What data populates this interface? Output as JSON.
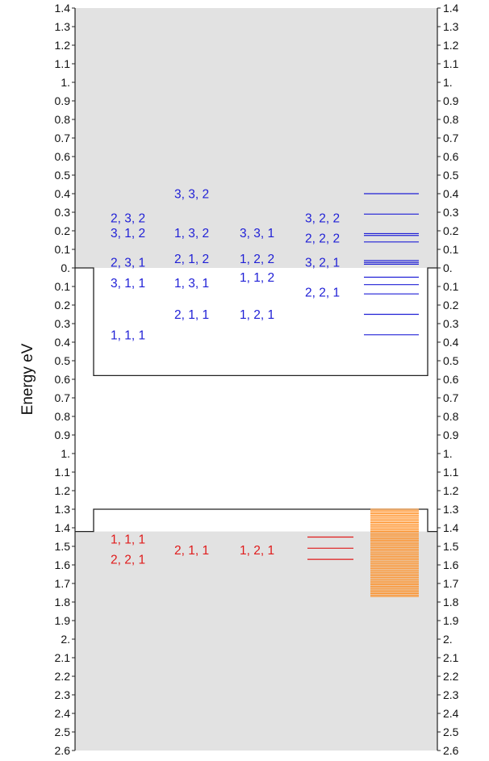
{
  "axis": {
    "ylabel": "Energy   eV",
    "tick_labels": [
      "1.4",
      "1.3",
      "1.2",
      "1.1",
      "1.",
      "0.9",
      "0.8",
      "0.7",
      "0.6",
      "0.5",
      "0.4",
      "0.3",
      "0.2",
      "0.1",
      "0.",
      "0.1",
      "0.2",
      "0.3",
      "0.4",
      "0.5",
      "0.6",
      "0.7",
      "0.8",
      "0.9",
      "1.",
      "1.1",
      "1.2",
      "1.3",
      "1.4",
      "1.5",
      "1.6",
      "1.7",
      "1.8",
      "1.9",
      "2.",
      "2.1",
      "2.2",
      "2.3",
      "2.4",
      "2.5",
      "2.6"
    ],
    "energy_range": [
      1.4,
      -2.6
    ]
  },
  "colors": {
    "electron": "#1f1fd6",
    "hole": "#e01b1b",
    "hole_dense": "#ff8a1a",
    "band_fill": "#e2e2e2",
    "outline": "#222222"
  },
  "band_regions": {
    "conduction_band_from": 0.0,
    "valence_band_from": -1.42
  },
  "potential_profile": {
    "conduction_well": {
      "barrier": 0.0,
      "bottom": -0.58
    },
    "valence_well": {
      "barrier": -1.42,
      "top": -1.3
    }
  },
  "electron_states": [
    {
      "label": "2, 3, 2",
      "column": 1,
      "energy": 0.27
    },
    {
      "label": "3, 1, 2",
      "column": 1,
      "energy": 0.19
    },
    {
      "label": "2, 3, 1",
      "column": 1,
      "energy": 0.03
    },
    {
      "label": "3, 1, 1",
      "column": 1,
      "energy": -0.08
    },
    {
      "label": "1, 1, 1",
      "column": 1,
      "energy": -0.36
    },
    {
      "label": "3, 3, 2",
      "column": 2,
      "energy": 0.4
    },
    {
      "label": "1, 3, 2",
      "column": 2,
      "energy": 0.19
    },
    {
      "label": "2, 1, 2",
      "column": 2,
      "energy": 0.05
    },
    {
      "label": "1, 3, 1",
      "column": 2,
      "energy": -0.08
    },
    {
      "label": "2, 1, 1",
      "column": 2,
      "energy": -0.25
    },
    {
      "label": "3, 3, 1",
      "column": 3,
      "energy": 0.19
    },
    {
      "label": "1, 2, 2",
      "column": 3,
      "energy": 0.05
    },
    {
      "label": "1, 1, 2",
      "column": 3,
      "energy": -0.05
    },
    {
      "label": "1, 2, 1",
      "column": 3,
      "energy": -0.25
    },
    {
      "label": "3, 2, 2",
      "column": 4,
      "energy": 0.27
    },
    {
      "label": "2, 2, 2",
      "column": 4,
      "energy": 0.16
    },
    {
      "label": "3, 2, 1",
      "column": 4,
      "energy": 0.03
    },
    {
      "label": "2, 2, 1",
      "column": 4,
      "energy": -0.13
    }
  ],
  "hole_states": [
    {
      "label": "1, 1, 1",
      "column": 1,
      "energy": -1.46
    },
    {
      "label": "2, 2, 1",
      "column": 1,
      "energy": -1.57
    },
    {
      "label": "2, 1, 1",
      "column": 2,
      "energy": -1.52
    },
    {
      "label": "1, 2, 1",
      "column": 3,
      "energy": -1.52
    }
  ],
  "electron_levels": [
    0.4,
    0.29,
    0.185,
    0.175,
    0.14,
    0.04,
    0.03,
    0.02,
    -0.05,
    -0.09,
    -0.14,
    -0.25,
    -0.36
  ],
  "hole_levels": [
    -1.45,
    -1.51,
    -1.57
  ],
  "hole_dense_band": {
    "top": -1.3,
    "bottom": -1.77,
    "count": 60
  }
}
